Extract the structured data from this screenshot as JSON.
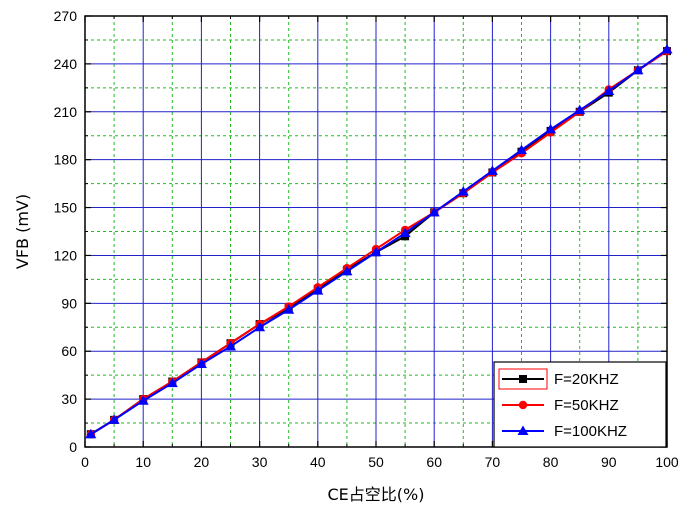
{
  "chart_data": {
    "type": "line",
    "xlabel": "CE占空比(%)",
    "ylabel": "VFB (mV)",
    "xlim": [
      0,
      100
    ],
    "ylim": [
      0,
      270
    ],
    "xticks": [
      0,
      10,
      20,
      30,
      40,
      50,
      60,
      70,
      80,
      90,
      100
    ],
    "yticks": [
      0,
      30,
      60,
      90,
      120,
      150,
      180,
      210,
      240,
      270
    ],
    "x_minor_step": 5,
    "y_minor_step": 15,
    "grid": true,
    "legend_position": "bottom-right",
    "colors": {
      "major_grid": "#2222cc",
      "minor_grid": "#22bb22"
    },
    "series": [
      {
        "name": "F=20KHZ",
        "color": "#000000",
        "marker": "square",
        "x": [
          1,
          5,
          10,
          15,
          20,
          25,
          30,
          35,
          40,
          45,
          50,
          55,
          60,
          65,
          70,
          75,
          80,
          85,
          90,
          95,
          100
        ],
        "y": [
          8,
          17,
          30,
          41,
          53,
          65,
          77,
          87,
          99,
          111,
          122,
          132,
          147,
          159,
          172,
          185,
          198,
          210,
          222,
          236,
          248
        ]
      },
      {
        "name": "F=50KHZ",
        "color": "#ff0000",
        "marker": "circle",
        "x": [
          1,
          5,
          10,
          15,
          20,
          25,
          30,
          35,
          40,
          45,
          50,
          55,
          60,
          65,
          70,
          75,
          80,
          85,
          90,
          95,
          100
        ],
        "y": [
          8,
          17,
          30,
          41,
          53,
          65,
          77,
          88,
          100,
          112,
          124,
          136,
          147,
          159,
          172,
          184,
          197,
          210,
          224,
          236,
          248
        ]
      },
      {
        "name": "F=100KHZ",
        "color": "#0000ff",
        "marker": "triangle",
        "x": [
          1,
          5,
          10,
          15,
          20,
          25,
          30,
          35,
          40,
          45,
          50,
          55,
          60,
          65,
          70,
          75,
          80,
          85,
          90,
          95,
          100
        ],
        "y": [
          8,
          17,
          29,
          40,
          52,
          63,
          75,
          86,
          98,
          110,
          122,
          134,
          147,
          160,
          173,
          186,
          199,
          211,
          223,
          236,
          249
        ]
      }
    ]
  }
}
